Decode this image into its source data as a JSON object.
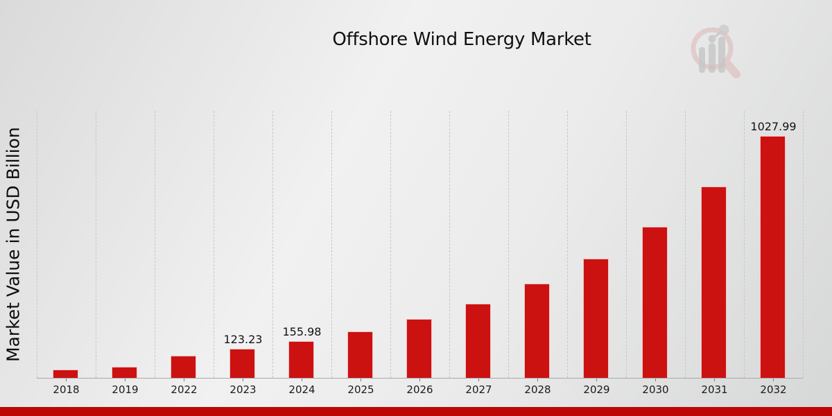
{
  "title": "Offshore Wind Energy Market",
  "y_axis_title": "Market Value in USD Billion",
  "colors": {
    "bar": "#cc1111",
    "footer_stripe": "#bd0707",
    "gridline": "#c6c6c6",
    "background_light": "#f1f1f1",
    "background_dark": "#d6d7d7",
    "logo_pink": "#dcb5b5",
    "logo_gray": "#c6c6c6"
  },
  "logo": {
    "name": "magnifier-bar-chart-watermark"
  },
  "chart_data": {
    "type": "bar",
    "title": "Offshore Wind Energy Market",
    "xlabel": "",
    "ylabel": "Market Value in USD Billion",
    "categories": [
      "2018",
      "2019",
      "2022",
      "2023",
      "2024",
      "2025",
      "2026",
      "2027",
      "2028",
      "2029",
      "2030",
      "2031",
      "2032"
    ],
    "values": [
      35.3,
      47.1,
      94.2,
      123.23,
      155.98,
      197.4,
      249.9,
      316.4,
      400.5,
      507.0,
      641.8,
      812.5,
      1027.99
    ],
    "bar_value_labels": [
      "",
      "",
      "",
      "123.23",
      "155.98",
      "",
      "",
      "",
      "",
      "",
      "",
      "",
      "1027.99"
    ],
    "ylim": [
      0,
      1135
    ],
    "y_axis_ticks_visible": false,
    "grid": "vertical-dashed",
    "legend_position": "none",
    "bar_color": "#cc1111"
  }
}
